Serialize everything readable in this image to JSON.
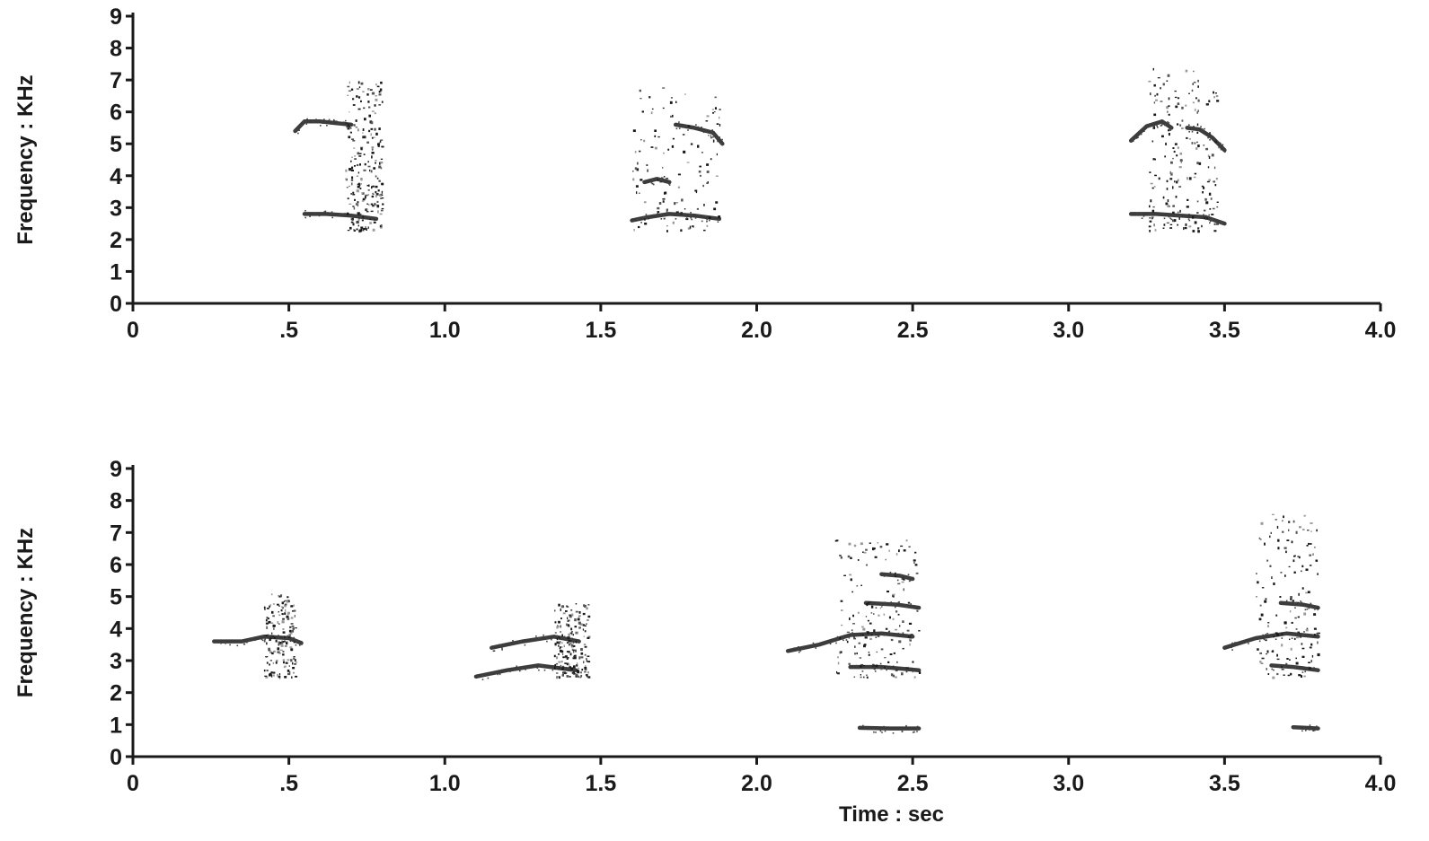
{
  "chart_data": [
    {
      "type": "heatmap",
      "panel": "top",
      "ylabel": "Frequency : KHz",
      "xlabel": "",
      "xlim": [
        0,
        4.0
      ],
      "ylim": [
        0,
        9
      ],
      "x_ticks": [
        "0",
        ".5",
        "1.0",
        "1.5",
        "2.0",
        "2.5",
        "3.0",
        "3.5",
        "4.0"
      ],
      "x_tick_values": [
        0,
        0.5,
        1.0,
        1.5,
        2.0,
        2.5,
        3.0,
        3.5,
        4.0
      ],
      "y_ticks": [
        "0",
        "1",
        "2",
        "3",
        "4",
        "5",
        "6",
        "7",
        "8",
        "9"
      ],
      "y_tick_values": [
        0,
        1,
        2,
        3,
        4,
        5,
        6,
        7,
        8,
        9
      ],
      "grid": false,
      "color": "#1a1a1a",
      "traces": [
        {
          "x": [
            0.52,
            0.55,
            0.6,
            0.65,
            0.7
          ],
          "y": [
            5.4,
            5.7,
            5.7,
            5.65,
            5.6
          ]
        },
        {
          "x": [
            0.55,
            0.62,
            0.7,
            0.78
          ],
          "y": [
            2.8,
            2.8,
            2.75,
            2.65
          ]
        },
        {
          "x": [
            1.74,
            1.8,
            1.86,
            1.89
          ],
          "y": [
            5.6,
            5.5,
            5.35,
            5.0
          ]
        },
        {
          "x": [
            1.6,
            1.65,
            1.72,
            1.8,
            1.88
          ],
          "y": [
            2.6,
            2.7,
            2.8,
            2.75,
            2.65
          ]
        },
        {
          "x": [
            3.2,
            3.25,
            3.3,
            3.33
          ],
          "y": [
            5.1,
            5.55,
            5.7,
            5.5
          ]
        },
        {
          "x": [
            3.38,
            3.42,
            3.46,
            3.5
          ],
          "y": [
            5.5,
            5.45,
            5.2,
            4.8
          ]
        },
        {
          "x": [
            3.2,
            3.28,
            3.36,
            3.44,
            3.5
          ],
          "y": [
            2.8,
            2.8,
            2.75,
            2.7,
            2.5
          ]
        },
        {
          "x": [
            1.64,
            1.68,
            1.72
          ],
          "y": [
            3.8,
            3.9,
            3.8
          ]
        }
      ],
      "clusters": [
        {
          "x": [
            0.68,
            0.8
          ],
          "y": [
            2.3,
            7.0
          ],
          "density": 0.9
        },
        {
          "x": [
            1.6,
            1.88
          ],
          "y": [
            2.3,
            6.8
          ],
          "density": 0.45
        },
        {
          "x": [
            3.25,
            3.48
          ],
          "y": [
            2.3,
            7.4
          ],
          "density": 0.7
        }
      ]
    },
    {
      "type": "heatmap",
      "panel": "bottom",
      "ylabel": "Frequency : KHz",
      "xlabel": "Time : sec",
      "xlim": [
        0,
        4.0
      ],
      "ylim": [
        0,
        9
      ],
      "x_ticks": [
        "0",
        ".5",
        "1.0",
        "1.5",
        "2.0",
        "2.5",
        "3.0",
        "3.5",
        "4.0"
      ],
      "x_tick_values": [
        0,
        0.5,
        1.0,
        1.5,
        2.0,
        2.5,
        3.0,
        3.5,
        4.0
      ],
      "y_ticks": [
        "0",
        "1",
        "2",
        "3",
        "4",
        "5",
        "6",
        "7",
        "8",
        "9"
      ],
      "y_tick_values": [
        0,
        1,
        2,
        3,
        4,
        5,
        6,
        7,
        8,
        9
      ],
      "grid": false,
      "color": "#1a1a1a",
      "traces": [
        {
          "x": [
            0.26,
            0.35,
            0.42,
            0.5,
            0.54
          ],
          "y": [
            3.6,
            3.6,
            3.75,
            3.7,
            3.55
          ]
        },
        {
          "x": [
            1.15,
            1.25,
            1.35,
            1.43
          ],
          "y": [
            3.4,
            3.6,
            3.75,
            3.6
          ]
        },
        {
          "x": [
            1.1,
            1.2,
            1.3,
            1.42
          ],
          "y": [
            2.5,
            2.7,
            2.85,
            2.7
          ]
        },
        {
          "x": [
            2.1,
            2.2,
            2.3,
            2.4,
            2.5
          ],
          "y": [
            3.3,
            3.5,
            3.8,
            3.85,
            3.75
          ]
        },
        {
          "x": [
            2.3,
            2.4,
            2.52
          ],
          "y": [
            2.8,
            2.8,
            2.7
          ]
        },
        {
          "x": [
            2.35,
            2.45,
            2.52
          ],
          "y": [
            4.8,
            4.75,
            4.65
          ]
        },
        {
          "x": [
            2.4,
            2.46,
            2.5
          ],
          "y": [
            5.7,
            5.65,
            5.55
          ]
        },
        {
          "x": [
            2.33,
            2.43,
            2.52
          ],
          "y": [
            0.9,
            0.88,
            0.88
          ]
        },
        {
          "x": [
            3.5,
            3.6,
            3.7,
            3.8
          ],
          "y": [
            3.4,
            3.7,
            3.85,
            3.75
          ]
        },
        {
          "x": [
            3.65,
            3.72,
            3.8
          ],
          "y": [
            2.85,
            2.8,
            2.7
          ]
        },
        {
          "x": [
            3.68,
            3.75,
            3.8
          ],
          "y": [
            4.8,
            4.75,
            4.65
          ]
        },
        {
          "x": [
            3.72,
            3.76,
            3.8
          ],
          "y": [
            0.92,
            0.9,
            0.88
          ]
        }
      ],
      "clusters": [
        {
          "x": [
            0.42,
            0.52
          ],
          "y": [
            2.5,
            5.1
          ],
          "density": 0.6
        },
        {
          "x": [
            1.35,
            1.46
          ],
          "y": [
            2.5,
            4.8
          ],
          "density": 0.7
        },
        {
          "x": [
            2.25,
            2.52
          ],
          "y": [
            2.5,
            6.8
          ],
          "density": 0.6
        },
        {
          "x": [
            3.6,
            3.8
          ],
          "y": [
            2.5,
            7.6
          ],
          "density": 0.55
        }
      ]
    }
  ]
}
